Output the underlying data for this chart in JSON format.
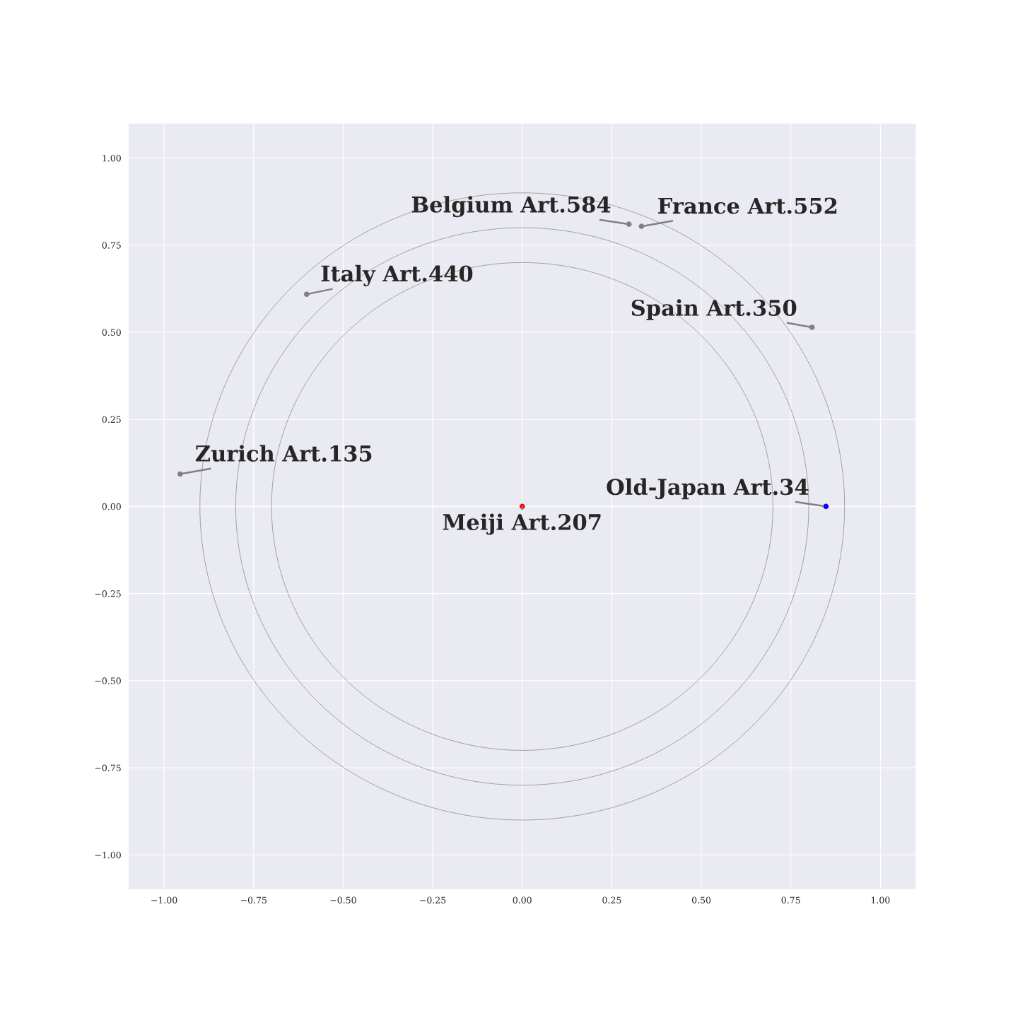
{
  "chart_data": {
    "type": "scatter",
    "xlim": [
      -1.1,
      1.1
    ],
    "ylim": [
      -1.1,
      1.1
    ],
    "xticks": [
      {
        "value": -1.0,
        "label": "−1.00"
      },
      {
        "value": -0.75,
        "label": "−0.75"
      },
      {
        "value": -0.5,
        "label": "−0.50"
      },
      {
        "value": -0.25,
        "label": "−0.25"
      },
      {
        "value": 0.0,
        "label": "0.00"
      },
      {
        "value": 0.25,
        "label": "0.25"
      },
      {
        "value": 0.5,
        "label": "0.50"
      },
      {
        "value": 0.75,
        "label": "0.75"
      },
      {
        "value": 1.0,
        "label": "1.00"
      }
    ],
    "yticks": [
      {
        "value": -1.0,
        "label": "−1.00"
      },
      {
        "value": -0.75,
        "label": "−0.75"
      },
      {
        "value": -0.5,
        "label": "−0.50"
      },
      {
        "value": -0.25,
        "label": "−0.25"
      },
      {
        "value": 0.0,
        "label": "0.00"
      },
      {
        "value": 0.25,
        "label": "0.25"
      },
      {
        "value": 0.5,
        "label": "0.50"
      },
      {
        "value": 0.75,
        "label": "0.75"
      },
      {
        "value": 1.0,
        "label": "1.00"
      }
    ],
    "grid": true,
    "marker": "circle",
    "series": [
      {
        "color": "#808080",
        "x": [
          0.298,
          0.333,
          -0.602,
          0.809,
          -0.955
        ],
        "values": [
          0.81,
          0.804,
          0.609,
          0.514,
          0.093
        ]
      },
      {
        "color": "#0000ff",
        "x": [
          0.848
        ],
        "values": [
          0.0
        ]
      },
      {
        "color": "#ff0000",
        "x": [
          0.0
        ],
        "values": [
          0.0
        ]
      }
    ],
    "annotations": [
      {
        "text": "Belgium Art.584",
        "x": 0.298,
        "y": 0.81
      },
      {
        "text": "France Art.552",
        "x": 0.333,
        "y": 0.804
      },
      {
        "text": "Italy Art.440",
        "x": -0.602,
        "y": 0.609
      },
      {
        "text": "Spain Art.350",
        "x": 0.809,
        "y": 0.514
      },
      {
        "text": "Zurich Art.135",
        "x": -0.955,
        "y": 0.093
      },
      {
        "text": "Old-Japan Art.34",
        "x": 0.848,
        "y": 0.0
      },
      {
        "text": "Meiji Art.207",
        "x": 0.0,
        "y": 0.0
      }
    ]
  }
}
